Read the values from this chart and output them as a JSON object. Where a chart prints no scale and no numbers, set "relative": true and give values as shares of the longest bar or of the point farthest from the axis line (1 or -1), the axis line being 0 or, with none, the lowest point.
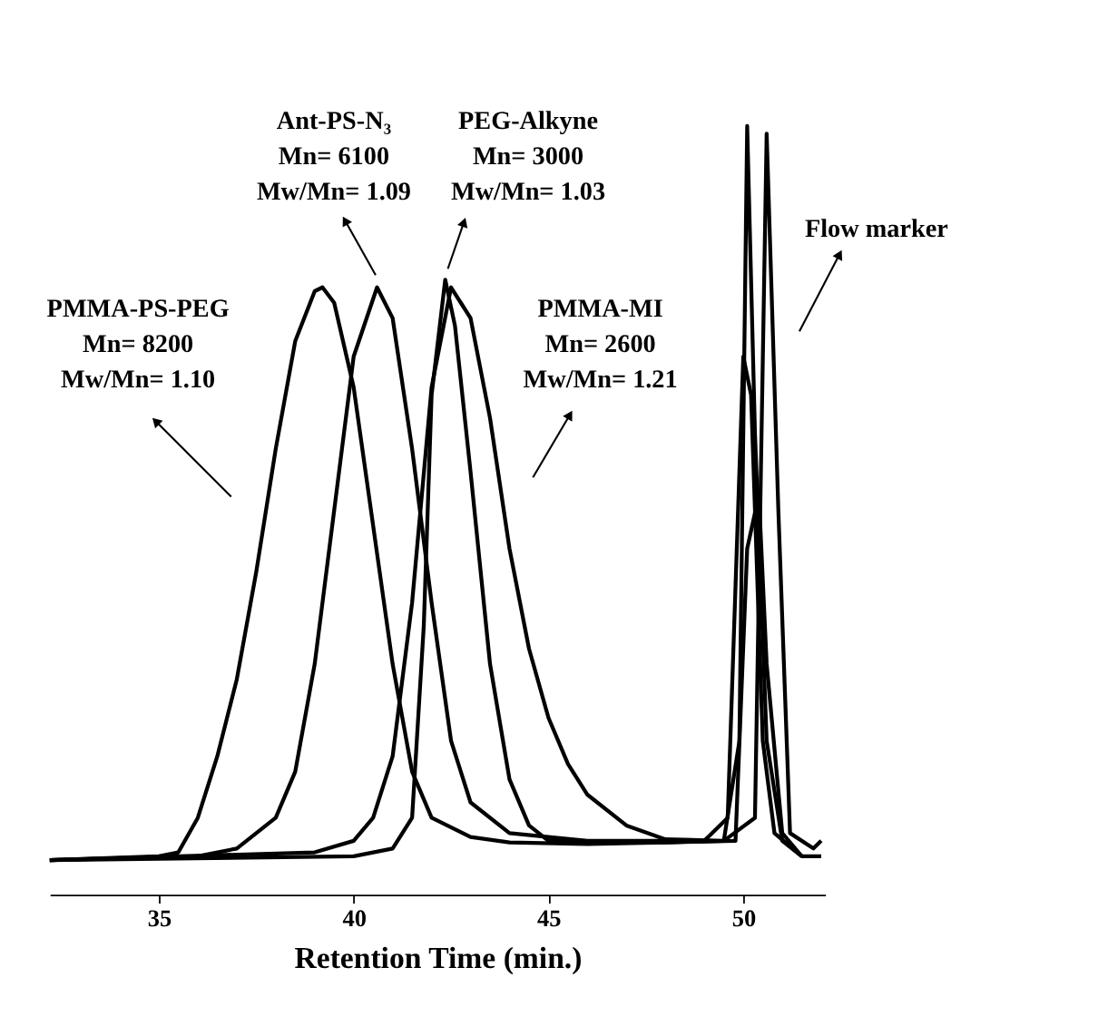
{
  "chart_data": {
    "type": "line",
    "xlabel": "Retention Time (min.)",
    "xlim": [
      32.2,
      52.1
    ],
    "xticks": [
      35,
      40,
      45,
      50
    ],
    "relative": true,
    "grid": false,
    "series": [
      {
        "color": "#000000",
        "x": [
          32.2,
          35,
          35.5,
          36,
          36.5,
          37,
          37.5,
          38,
          38.5,
          39,
          39.2,
          39.5,
          40,
          40.5,
          41,
          41.5,
          42,
          43,
          44,
          46,
          48,
          49.5,
          49.9,
          50.1,
          50.3,
          50.6,
          51,
          51.5,
          52
        ],
        "values": [
          0.045,
          0.05,
          0.055,
          0.1,
          0.18,
          0.28,
          0.42,
          0.58,
          0.72,
          0.785,
          0.79,
          0.77,
          0.66,
          0.48,
          0.3,
          0.16,
          0.1,
          0.075,
          0.068,
          0.066,
          0.068,
          0.07,
          0.2,
          1.0,
          0.6,
          0.2,
          0.07,
          0.05,
          0.05
        ]
      },
      {
        "color": "#000000",
        "x": [
          32.2,
          36,
          37,
          38,
          38.5,
          39,
          39.5,
          40,
          40.6,
          41,
          41.5,
          42,
          42.5,
          43,
          44,
          46,
          49,
          49.6,
          50,
          50.2,
          50.5,
          50.8,
          51.5
        ],
        "values": [
          0.045,
          0.05,
          0.06,
          0.1,
          0.16,
          0.3,
          0.5,
          0.7,
          0.79,
          0.75,
          0.58,
          0.38,
          0.2,
          0.12,
          0.08,
          0.07,
          0.07,
          0.1,
          0.7,
          0.65,
          0.2,
          0.08,
          0.05
        ]
      },
      {
        "color": "#000000",
        "x": [
          32.2,
          40,
          41,
          41.5,
          41.8,
          42.0,
          42.35,
          42.6,
          43,
          43.5,
          44,
          44.5,
          45,
          48,
          49.8,
          50.1,
          50.4,
          50.6,
          51,
          51.5
        ],
        "values": [
          0.045,
          0.05,
          0.06,
          0.1,
          0.35,
          0.65,
          0.8,
          0.74,
          0.55,
          0.3,
          0.15,
          0.09,
          0.07,
          0.068,
          0.07,
          0.45,
          0.52,
          0.3,
          0.08,
          0.05
        ]
      },
      {
        "color": "#000000",
        "x": [
          32.2,
          39,
          40,
          40.5,
          41,
          41.5,
          42,
          42.5,
          43,
          43.5,
          44,
          44.5,
          45,
          45.5,
          46,
          47,
          48,
          49.5,
          50.3,
          50.6,
          50.9,
          51.2,
          51.8,
          52
        ],
        "values": [
          0.045,
          0.055,
          0.07,
          0.1,
          0.18,
          0.38,
          0.66,
          0.79,
          0.75,
          0.62,
          0.45,
          0.32,
          0.23,
          0.17,
          0.13,
          0.09,
          0.072,
          0.07,
          0.1,
          0.99,
          0.5,
          0.08,
          0.06,
          0.07
        ]
      }
    ],
    "annotations": [
      "PMMA-PS-PEG\nMn= 8200\nMw/Mn= 1.10",
      "Ant-PS-N₃\nMn= 6100\nMw/Mn= 1.09",
      "PEG-Alkyne\nMn= 3000\nMw/Mn= 1.03",
      "PMMA-MI\nMn= 2600\nMw/Mn= 1.21",
      "Flow marker"
    ]
  }
}
